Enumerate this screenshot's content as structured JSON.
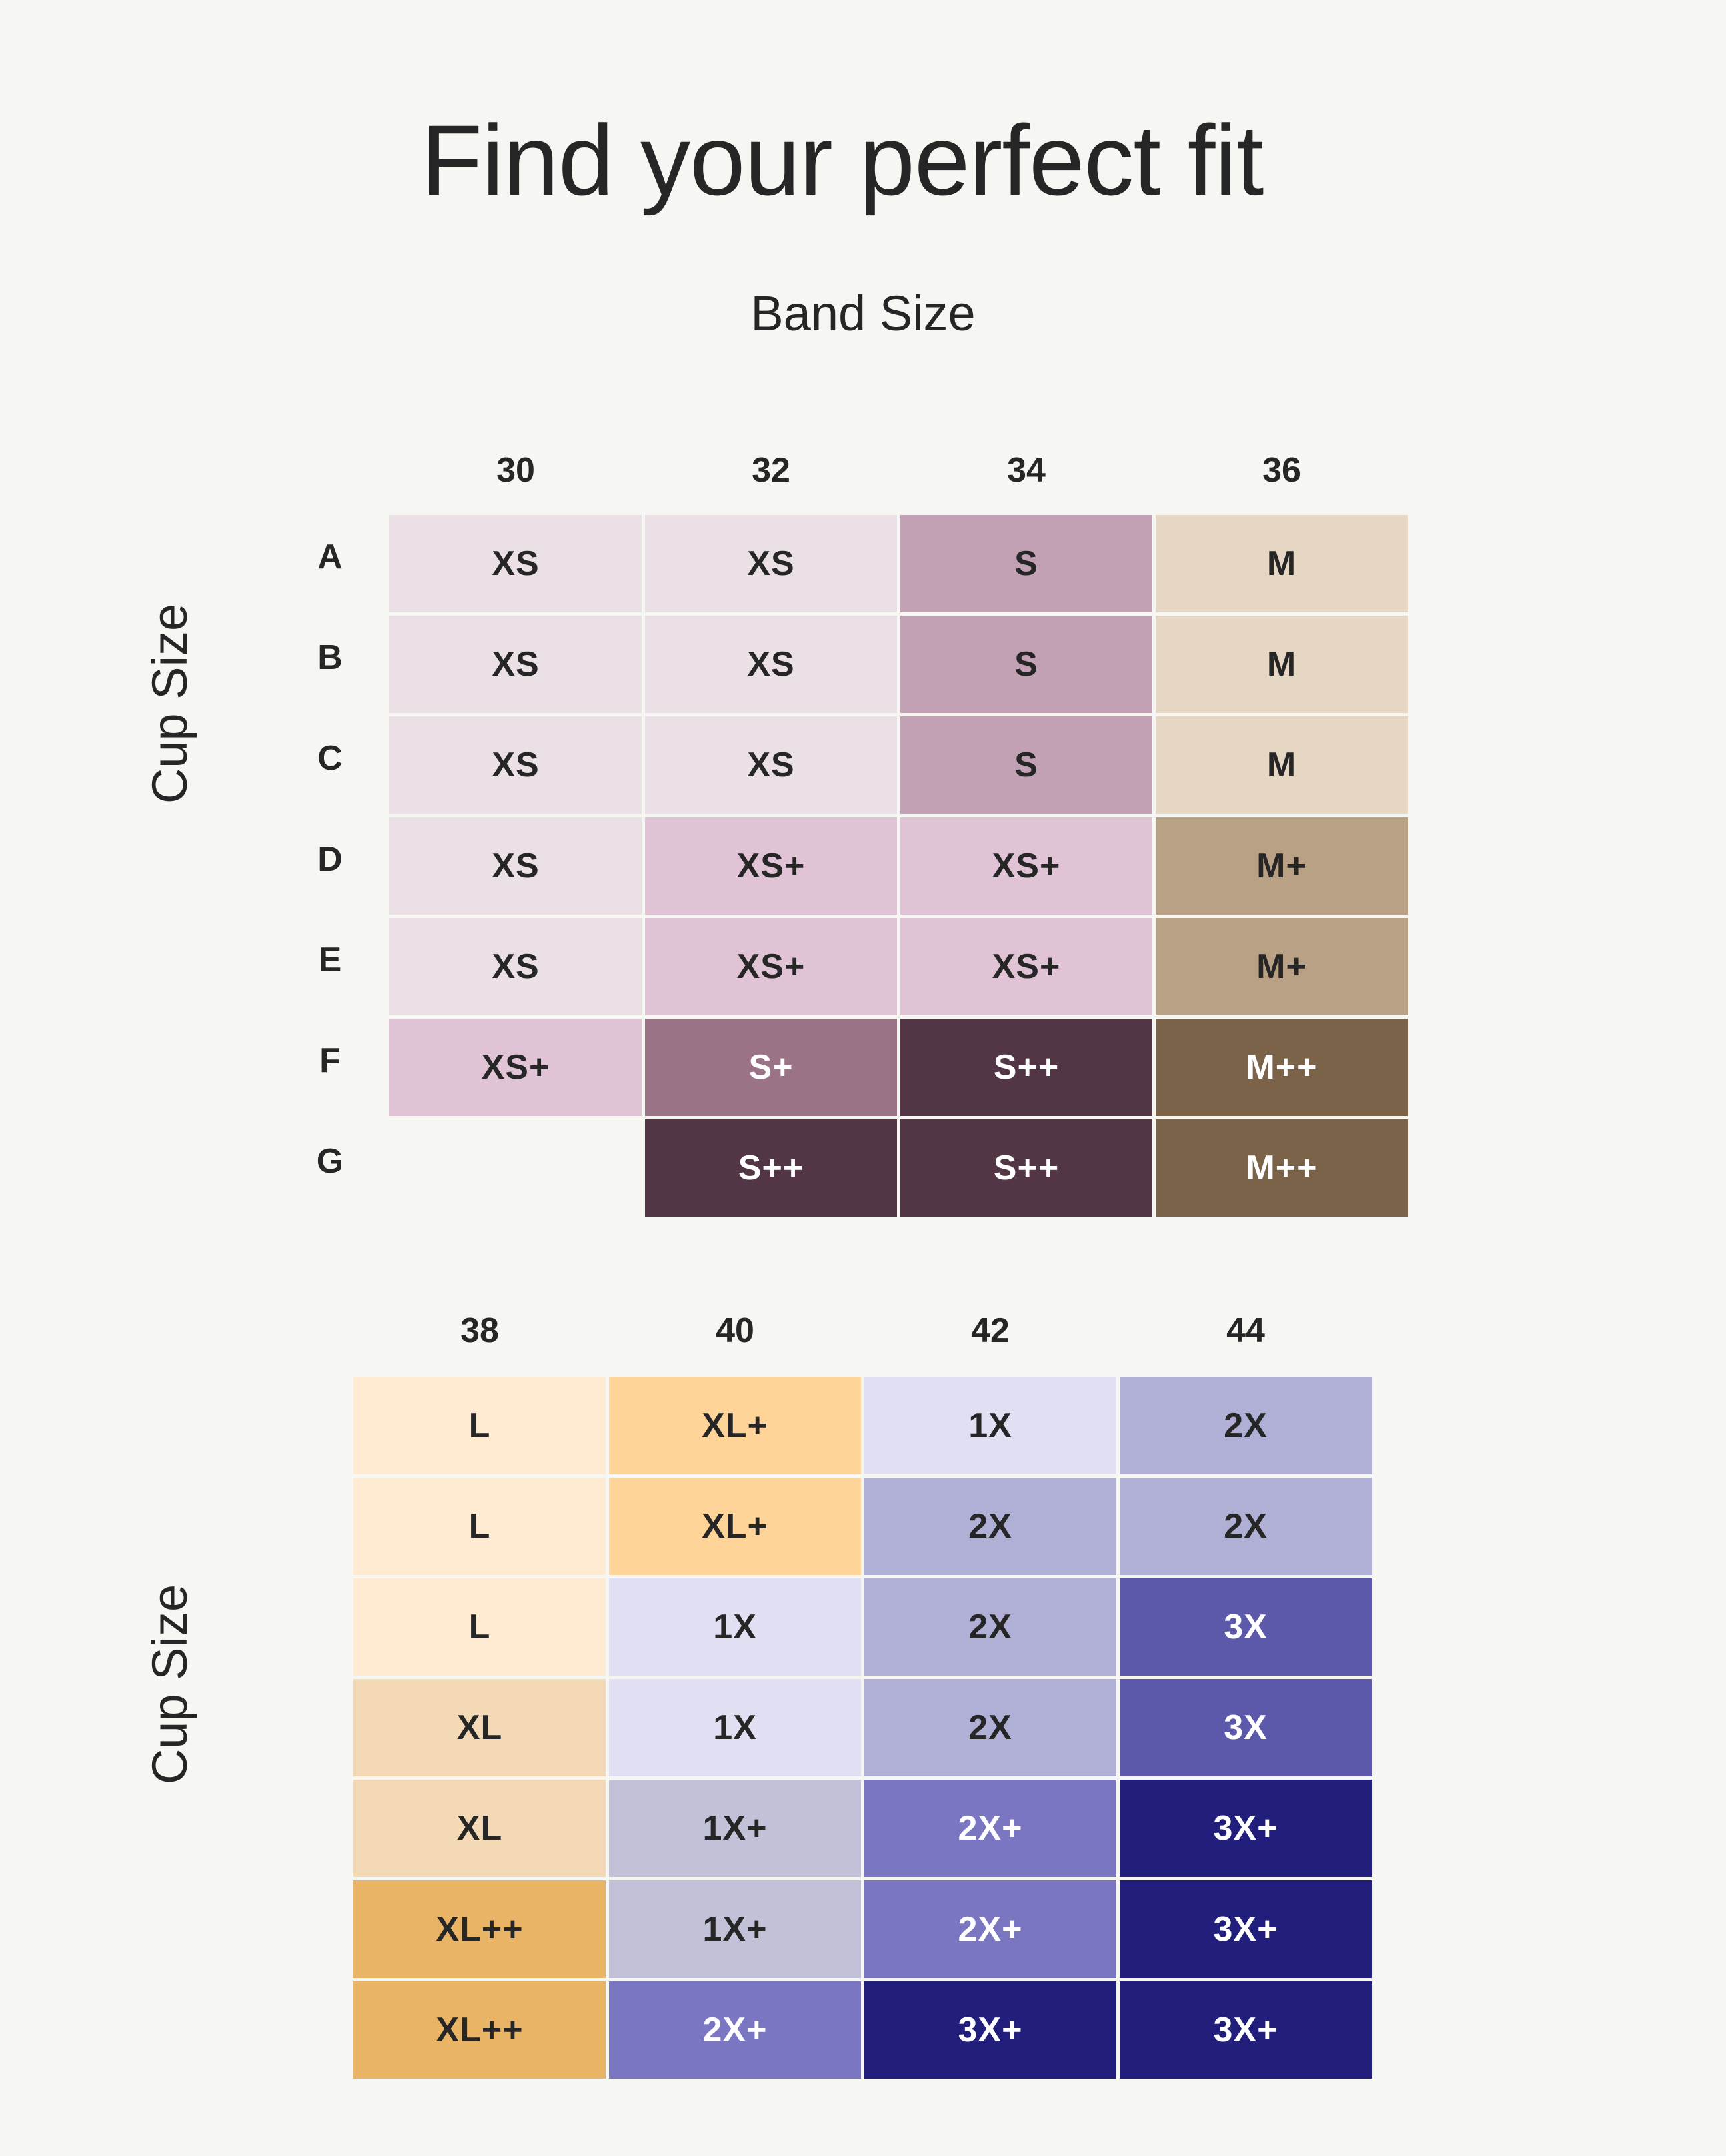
{
  "title": "Find your perfect fit",
  "band_size_label": "Band Size",
  "cup_size_label": "Cup Size",
  "upper_table": {
    "band_sizes": [
      "30",
      "32",
      "34",
      "36"
    ],
    "cup_sizes": [
      "A",
      "B",
      "C",
      "D",
      "E",
      "F",
      "G"
    ],
    "rows": [
      [
        "XS",
        "XS",
        "S",
        "M"
      ],
      [
        "XS",
        "XS",
        "S",
        "M"
      ],
      [
        "XS",
        "XS",
        "S",
        "M"
      ],
      [
        "XS",
        "XS+",
        "XS+",
        "M+"
      ],
      [
        "XS",
        "XS+",
        "XS+",
        "M+"
      ],
      [
        "XS+",
        "S+",
        "S++",
        "M++"
      ],
      [
        "",
        "S++",
        "S++",
        "M++"
      ]
    ]
  },
  "lower_table": {
    "band_sizes": [
      "38",
      "40",
      "42",
      "44"
    ],
    "rows": [
      [
        "L",
        "XL+",
        "1X",
        "2X"
      ],
      [
        "L",
        "XL+",
        "2X",
        "2X"
      ],
      [
        "L",
        "1X",
        "2X",
        "3X"
      ],
      [
        "XL",
        "1X",
        "2X",
        "3X"
      ],
      [
        "XL",
        "1X+",
        "2X+",
        "3X+"
      ],
      [
        "XL++",
        "1X+",
        "2X+",
        "3X+"
      ],
      [
        "XL++",
        "2X+",
        "3X+",
        "3X+"
      ]
    ]
  },
  "size_colors": {
    "XS": {
      "bg": "#ebe0e6",
      "fg": "#262626"
    },
    "XS+": {
      "bg": "#e1c3d6",
      "fg": "#262626"
    },
    "S": {
      "bg": "#c2a1b4",
      "fg": "#262626"
    },
    "S+": {
      "bg": "#9a7387",
      "fg": "#ffffff"
    },
    "S++": {
      "bg": "#523646",
      "fg": "#ffffff"
    },
    "M": {
      "bg": "#e6d7c4",
      "fg": "#262626"
    },
    "M+": {
      "bg": "#b8a185",
      "fg": "#262626"
    },
    "M++": {
      "bg": "#7b6349",
      "fg": "#ffffff"
    },
    "L": {
      "bg": "#feebd1",
      "fg": "#262626"
    },
    "XL": {
      "bg": "#f3d9b5",
      "fg": "#262626"
    },
    "XL+": {
      "bg": "#fed498",
      "fg": "#262626"
    },
    "XL++": {
      "bg": "#e9b465",
      "fg": "#262626"
    },
    "1X": {
      "bg": "#e1e0f3",
      "fg": "#262626"
    },
    "1X+": {
      "bg": "#c1c1d7",
      "fg": "#262626"
    },
    "2X": {
      "bg": "#b0b0d7",
      "fg": "#262626"
    },
    "2X+": {
      "bg": "#7b76c1",
      "fg": "#ffffff"
    },
    "3X": {
      "bg": "#5d59aa",
      "fg": "#ffffff"
    },
    "3X+": {
      "bg": "#221e7b",
      "fg": "#ffffff"
    }
  }
}
